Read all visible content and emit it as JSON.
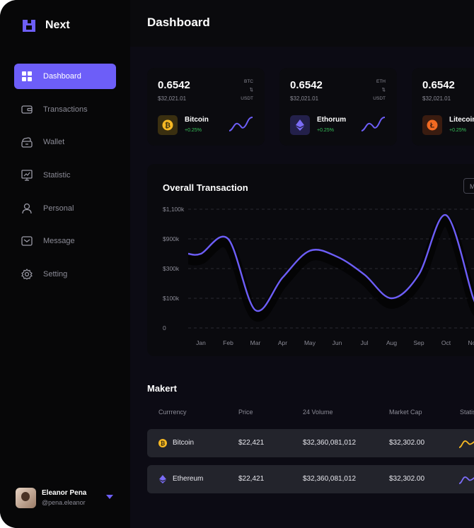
{
  "app": {
    "name": "Next",
    "brand_color": "#6d5ef8",
    "logo_icon": "logo-icon"
  },
  "sidebar": {
    "items": [
      {
        "label": "Dashboard",
        "icon": "grid-icon",
        "active": true
      },
      {
        "label": "Transactions",
        "icon": "wallet-card-icon"
      },
      {
        "label": "Wallet",
        "icon": "wallet-icon"
      },
      {
        "label": "Statistic",
        "icon": "chart-board-icon"
      },
      {
        "label": "Personal",
        "icon": "user-icon"
      },
      {
        "label": "Message",
        "icon": "mail-icon"
      },
      {
        "label": "Setting",
        "icon": "gear-icon"
      }
    ]
  },
  "profile": {
    "name": "Eleanor Pena",
    "handle": "@pena.eleanor"
  },
  "header": {
    "title": "Dashboard"
  },
  "coins": [
    {
      "value": "0.6542",
      "usd": "$32,021.01",
      "pair_top": "BTC",
      "pair_arrows": "⇅",
      "pair_bottom": "USDT",
      "name": "Bitcoin",
      "change": "+0.25%",
      "color": "#f7b924"
    },
    {
      "value": "0.6542",
      "usd": "$32,021.01",
      "pair_top": "ETH",
      "pair_arrows": "⇅",
      "pair_bottom": "USDT",
      "name": "Ethorum",
      "change": "+0.25%",
      "color": "#7b6cf6"
    },
    {
      "value": "0.6542",
      "usd": "$32,021.01",
      "pair_top": "",
      "pair_arrows": "",
      "pair_bottom": "",
      "name": "Litecoin",
      "change": "+0.25%",
      "color": "#f26a22"
    }
  ],
  "transaction": {
    "title": "Overall Transaction",
    "period": "M"
  },
  "chart_data": {
    "type": "line",
    "title": "Overall Transaction",
    "categories": [
      "Jan",
      "Feb",
      "Mar",
      "Apr",
      "May",
      "Jun",
      "Jul",
      "Aug",
      "Sep",
      "Oct",
      "Nov"
    ],
    "y_tick_labels": [
      "0",
      "$100k",
      "$300k",
      "$900k",
      "$1,100k"
    ],
    "series": [
      {
        "values": [
          2.5,
          3.0,
          0.6,
          1.7,
          2.6,
          2.4,
          1.8,
          1.0,
          1.8,
          3.8,
          1.0
        ]
      }
    ],
    "y_axis_note": "tick labels are evenly spaced at positions 0-4; values are plotted on that tick-index scale",
    "ylim": [
      0,
      4
    ],
    "grid": true,
    "line_color": "#6d5ef8"
  },
  "market": {
    "title": "Makert",
    "headers": [
      "Currrency",
      "Price",
      "24 Volume",
      "Market Cap",
      "Statis"
    ],
    "rows": [
      {
        "currency": "Bitcoin",
        "price": "$22,421",
        "volume": "$32,360,081,012",
        "cap": "$32,302.00",
        "color": "#f7b924",
        "trend_color": "#f7b924"
      },
      {
        "currency": "Ethereum",
        "price": "$22,421",
        "volume": "$32,360,081,012",
        "cap": "$32,302.00",
        "color": "#7b6cf6",
        "trend_color": "#7b6cf6"
      }
    ]
  }
}
